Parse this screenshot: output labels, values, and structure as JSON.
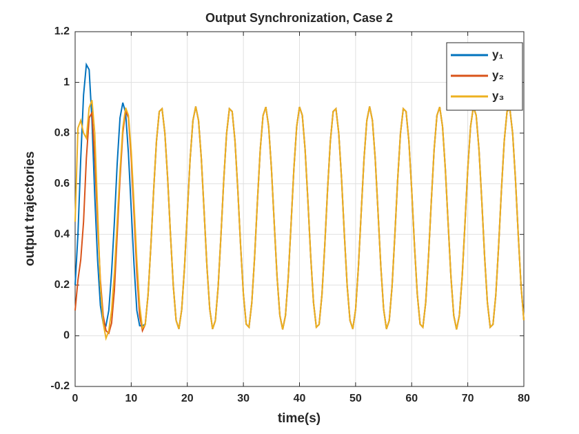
{
  "chart_data": {
    "type": "line",
    "title": "Output Synchronization, Case 2",
    "xlabel": "time(s)",
    "ylabel": "output trajectories",
    "xlim": [
      0,
      80
    ],
    "ylim": [
      -0.2,
      1.2
    ],
    "xticks": [
      0,
      10,
      20,
      30,
      40,
      50,
      60,
      70,
      80
    ],
    "yticks": [
      -0.2,
      0,
      0.2,
      0.4,
      0.6,
      0.8,
      1,
      1.2
    ],
    "grid": true,
    "legend": "upper right",
    "x": [
      0,
      0.5,
      1,
      1.5,
      2,
      2.5,
      3,
      3.5,
      4,
      4.5,
      5,
      5.5,
      6,
      6.5,
      7,
      7.5,
      8,
      8.5,
      9,
      9.5,
      10,
      10.5,
      11,
      11.5,
      12,
      12.5,
      13,
      13.5,
      14,
      14.5,
      15,
      15.5,
      16,
      16.5,
      17,
      17.5,
      18,
      18.5,
      19,
      19.5,
      20,
      20.5,
      21,
      21.5,
      22,
      22.5,
      23,
      23.5,
      24,
      24.5,
      25,
      25.5,
      26,
      26.5,
      27,
      27.5,
      28,
      28.5,
      29,
      29.5,
      30,
      30.5,
      31,
      31.5,
      32,
      32.5,
      33,
      33.5,
      34,
      34.5,
      35,
      35.5,
      36,
      36.5,
      37,
      37.5,
      38,
      38.5,
      39,
      39.5,
      40,
      40.5,
      41,
      41.5,
      42,
      42.5,
      43,
      43.5,
      44,
      44.5,
      45,
      45.5,
      46,
      46.5,
      47,
      47.5,
      48,
      48.5,
      49,
      49.5,
      50,
      50.5,
      51,
      51.5,
      52,
      52.5,
      53,
      53.5,
      54,
      54.5,
      55,
      55.5,
      56,
      56.5,
      57,
      57.5,
      58,
      58.5,
      59,
      59.5,
      60,
      60.5,
      61,
      61.5,
      62,
      62.5,
      63,
      63.5,
      64,
      64.5,
      65,
      65.5,
      66,
      66.5,
      67,
      67.5,
      68,
      68.5,
      69,
      69.5,
      70,
      70.5,
      71,
      71.5,
      72,
      72.5,
      73,
      73.5,
      74,
      74.5,
      75,
      75.5,
      76,
      76.5,
      77,
      77.5,
      78,
      78.5,
      79,
      79.5,
      80
    ],
    "series": [
      {
        "name": "y₁",
        "color": "#0072bd",
        "values": [
          0.2,
          0.4,
          0.7,
          0.95,
          1.07,
          1.05,
          0.85,
          0.55,
          0.3,
          0.12,
          0.05,
          0.04,
          0.1,
          0.25,
          0.45,
          0.68,
          0.86,
          0.92,
          0.88,
          0.72,
          0.5,
          0.28,
          0.1,
          0.04,
          0.04,
          0.045,
          0.161,
          0.354,
          0.575,
          0.768,
          0.885,
          0.896,
          0.799,
          0.619,
          0.399,
          0.197,
          0.061,
          0.027,
          0.103,
          0.27,
          0.486,
          0.697,
          0.849,
          0.905,
          0.85,
          0.699,
          0.489,
          0.273,
          0.105,
          0.027,
          0.06,
          0.194,
          0.397,
          0.616,
          0.798,
          0.896,
          0.885,
          0.769,
          0.577,
          0.356,
          0.164,
          0.046,
          0.034,
          0.131,
          0.312,
          0.531,
          0.734,
          0.869,
          0.903,
          0.826,
          0.659,
          0.443,
          0.233,
          0.08,
          0.025,
          0.08,
          0.232,
          0.442,
          0.659,
          0.826,
          0.903,
          0.87,
          0.735,
          0.532,
          0.313,
          0.131,
          0.034,
          0.045,
          0.161,
          0.354,
          0.575,
          0.768,
          0.885,
          0.896,
          0.799,
          0.619,
          0.399,
          0.197,
          0.061,
          0.027,
          0.103,
          0.27,
          0.486,
          0.697,
          0.849,
          0.905,
          0.85,
          0.699,
          0.489,
          0.273,
          0.105,
          0.027,
          0.06,
          0.194,
          0.397,
          0.616,
          0.798,
          0.896,
          0.885,
          0.769,
          0.577,
          0.356,
          0.164,
          0.046,
          0.034,
          0.131,
          0.312,
          0.531,
          0.734,
          0.869,
          0.903,
          0.826,
          0.659,
          0.443,
          0.233,
          0.08,
          0.025,
          0.08,
          0.232,
          0.442,
          0.659,
          0.826,
          0.903,
          0.87,
          0.735,
          0.532,
          0.313,
          0.131,
          0.034,
          0.045,
          0.161,
          0.354,
          0.575,
          0.768,
          0.885,
          0.896,
          0.799,
          0.619,
          0.399,
          0.197,
          0.061
        ]
      },
      {
        "name": "y₂",
        "color": "#d95319",
        "values": [
          0.1,
          0.22,
          0.3,
          0.45,
          0.7,
          0.86,
          0.88,
          0.7,
          0.45,
          0.22,
          0.08,
          0.02,
          0.01,
          0.05,
          0.18,
          0.4,
          0.62,
          0.8,
          0.89,
          0.86,
          0.7,
          0.48,
          0.25,
          0.08,
          0.02,
          0.045,
          0.161,
          0.354,
          0.575,
          0.768,
          0.885,
          0.896,
          0.799,
          0.619,
          0.399,
          0.197,
          0.061,
          0.027,
          0.103,
          0.27,
          0.486,
          0.697,
          0.849,
          0.905,
          0.85,
          0.699,
          0.489,
          0.273,
          0.105,
          0.027,
          0.06,
          0.194,
          0.397,
          0.616,
          0.798,
          0.896,
          0.885,
          0.769,
          0.577,
          0.356,
          0.164,
          0.046,
          0.034,
          0.131,
          0.312,
          0.531,
          0.734,
          0.869,
          0.903,
          0.826,
          0.659,
          0.443,
          0.233,
          0.08,
          0.025,
          0.08,
          0.232,
          0.442,
          0.659,
          0.826,
          0.903,
          0.87,
          0.735,
          0.532,
          0.313,
          0.131,
          0.034,
          0.045,
          0.161,
          0.354,
          0.575,
          0.768,
          0.885,
          0.896,
          0.799,
          0.619,
          0.399,
          0.197,
          0.061,
          0.027,
          0.103,
          0.27,
          0.486,
          0.697,
          0.849,
          0.905,
          0.85,
          0.699,
          0.489,
          0.273,
          0.105,
          0.027,
          0.06,
          0.194,
          0.397,
          0.616,
          0.798,
          0.896,
          0.885,
          0.769,
          0.577,
          0.356,
          0.164,
          0.046,
          0.034,
          0.131,
          0.312,
          0.531,
          0.734,
          0.869,
          0.903,
          0.826,
          0.659,
          0.443,
          0.233,
          0.08,
          0.025,
          0.08,
          0.232,
          0.442,
          0.659,
          0.826,
          0.903,
          0.87,
          0.735,
          0.532,
          0.313,
          0.131,
          0.034,
          0.045,
          0.161,
          0.354,
          0.575,
          0.768,
          0.885,
          0.896,
          0.799,
          0.619,
          0.399,
          0.197,
          0.061
        ]
      },
      {
        "name": "y₃",
        "color": "#edb120",
        "values": [
          0.45,
          0.82,
          0.85,
          0.8,
          0.78,
          0.9,
          0.93,
          0.8,
          0.5,
          0.2,
          0.05,
          -0.01,
          0.02,
          0.1,
          0.25,
          0.45,
          0.65,
          0.82,
          0.9,
          0.87,
          0.73,
          0.52,
          0.3,
          0.12,
          0.03,
          0.045,
          0.161,
          0.354,
          0.575,
          0.768,
          0.885,
          0.896,
          0.799,
          0.619,
          0.399,
          0.197,
          0.061,
          0.027,
          0.103,
          0.27,
          0.486,
          0.697,
          0.849,
          0.905,
          0.85,
          0.699,
          0.489,
          0.273,
          0.105,
          0.027,
          0.06,
          0.194,
          0.397,
          0.616,
          0.798,
          0.896,
          0.885,
          0.769,
          0.577,
          0.356,
          0.164,
          0.046,
          0.034,
          0.131,
          0.312,
          0.531,
          0.734,
          0.869,
          0.903,
          0.826,
          0.659,
          0.443,
          0.233,
          0.08,
          0.025,
          0.08,
          0.232,
          0.442,
          0.659,
          0.826,
          0.903,
          0.87,
          0.735,
          0.532,
          0.313,
          0.131,
          0.034,
          0.045,
          0.161,
          0.354,
          0.575,
          0.768,
          0.885,
          0.896,
          0.799,
          0.619,
          0.399,
          0.197,
          0.061,
          0.027,
          0.103,
          0.27,
          0.486,
          0.697,
          0.849,
          0.905,
          0.85,
          0.699,
          0.489,
          0.273,
          0.105,
          0.027,
          0.06,
          0.194,
          0.397,
          0.616,
          0.798,
          0.896,
          0.885,
          0.769,
          0.577,
          0.356,
          0.164,
          0.046,
          0.034,
          0.131,
          0.312,
          0.531,
          0.734,
          0.869,
          0.903,
          0.826,
          0.659,
          0.443,
          0.233,
          0.08,
          0.025,
          0.08,
          0.232,
          0.442,
          0.659,
          0.826,
          0.903,
          0.87,
          0.735,
          0.532,
          0.313,
          0.131,
          0.034,
          0.045,
          0.161,
          0.354,
          0.575,
          0.768,
          0.885,
          0.896,
          0.799,
          0.619,
          0.399,
          0.197,
          0.061
        ]
      }
    ]
  }
}
